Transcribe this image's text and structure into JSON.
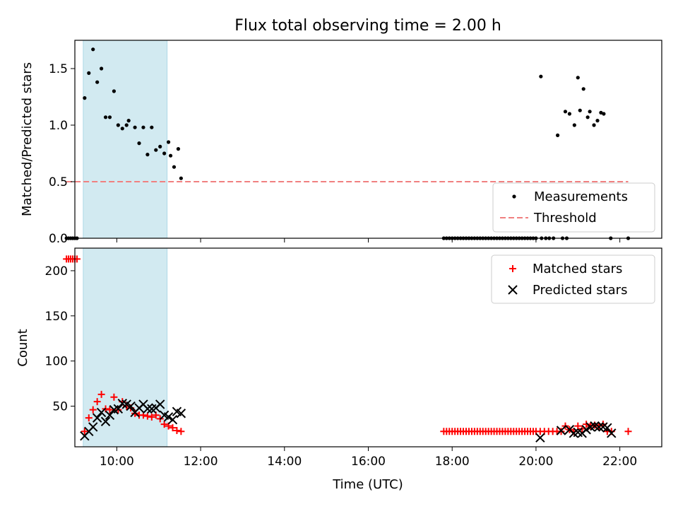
{
  "chart_data": [
    {
      "type": "scatter",
      "title": "Flux total observing time = 2.00 h",
      "xlabel": "",
      "ylabel": "Matched/Predicted stars",
      "ylim": [
        0,
        1.75
      ],
      "yticks": [
        0.0,
        0.5,
        1.0,
        1.5
      ],
      "ytick_labels": [
        "0.0",
        "0.5",
        "1.0",
        "1.5"
      ],
      "xlim": [
        "09:00",
        "23:00"
      ],
      "legend_position": "lower-right",
      "highlight_span": [
        "09:12",
        "11:12"
      ],
      "threshold": {
        "name": "Threshold",
        "y": 0.5,
        "x_start": "08:48",
        "x_end": "22:12",
        "color": "#f08080",
        "style": "dashed"
      },
      "series": [
        {
          "name": "Measurements",
          "color": "#000000",
          "marker": "dot",
          "points": [
            [
              "08:48",
              0.0
            ],
            [
              "08:51",
              0.0
            ],
            [
              "08:54",
              0.0
            ],
            [
              "08:57",
              0.0
            ],
            [
              "09:00",
              0.0
            ],
            [
              "09:03",
              0.0
            ],
            [
              "09:14",
              1.24
            ],
            [
              "09:20",
              1.46
            ],
            [
              "09:26",
              1.67
            ],
            [
              "09:32",
              1.38
            ],
            [
              "09:38",
              1.5
            ],
            [
              "09:44",
              1.07
            ],
            [
              "09:50",
              1.07
            ],
            [
              "09:56",
              1.3
            ],
            [
              "10:02",
              1.0
            ],
            [
              "10:08",
              0.97
            ],
            [
              "10:14",
              1.0
            ],
            [
              "10:17",
              1.04
            ],
            [
              "10:26",
              0.98
            ],
            [
              "10:32",
              0.84
            ],
            [
              "10:38",
              0.98
            ],
            [
              "10:44",
              0.74
            ],
            [
              "10:50",
              0.98
            ],
            [
              "10:56",
              0.78
            ],
            [
              "11:02",
              0.81
            ],
            [
              "11:08",
              0.75
            ],
            [
              "11:14",
              0.85
            ],
            [
              "11:17",
              0.73
            ],
            [
              "11:22",
              0.63
            ],
            [
              "11:28",
              0.79
            ],
            [
              "11:32",
              0.53
            ],
            [
              "17:48",
              0.0
            ],
            [
              "17:52",
              0.0
            ],
            [
              "17:56",
              0.0
            ],
            [
              "18:00",
              0.0
            ],
            [
              "18:04",
              0.0
            ],
            [
              "18:08",
              0.0
            ],
            [
              "18:12",
              0.0
            ],
            [
              "18:16",
              0.0
            ],
            [
              "18:20",
              0.0
            ],
            [
              "18:24",
              0.0
            ],
            [
              "18:28",
              0.0
            ],
            [
              "18:32",
              0.0
            ],
            [
              "18:36",
              0.0
            ],
            [
              "18:40",
              0.0
            ],
            [
              "18:44",
              0.0
            ],
            [
              "18:48",
              0.0
            ],
            [
              "18:52",
              0.0
            ],
            [
              "18:56",
              0.0
            ],
            [
              "19:00",
              0.0
            ],
            [
              "19:04",
              0.0
            ],
            [
              "19:08",
              0.0
            ],
            [
              "19:12",
              0.0
            ],
            [
              "19:16",
              0.0
            ],
            [
              "19:20",
              0.0
            ],
            [
              "19:24",
              0.0
            ],
            [
              "19:28",
              0.0
            ],
            [
              "19:32",
              0.0
            ],
            [
              "19:36",
              0.0
            ],
            [
              "19:40",
              0.0
            ],
            [
              "19:44",
              0.0
            ],
            [
              "19:48",
              0.0
            ],
            [
              "19:52",
              0.0
            ],
            [
              "19:56",
              0.0
            ],
            [
              "20:00",
              0.0
            ],
            [
              "20:08",
              0.0
            ],
            [
              "20:14",
              0.0
            ],
            [
              "20:19",
              0.0
            ],
            [
              "20:25",
              0.0
            ],
            [
              "20:38",
              0.0
            ],
            [
              "20:44",
              0.0
            ],
            [
              "20:07",
              1.43
            ],
            [
              "20:31",
              0.91
            ],
            [
              "20:42",
              1.12
            ],
            [
              "20:48",
              1.1
            ],
            [
              "20:55",
              1.0
            ],
            [
              "21:00",
              1.42
            ],
            [
              "21:03",
              1.13
            ],
            [
              "21:08",
              1.32
            ],
            [
              "21:14",
              1.07
            ],
            [
              "21:17",
              1.12
            ],
            [
              "21:23",
              1.0
            ],
            [
              "21:28",
              1.04
            ],
            [
              "21:33",
              1.11
            ],
            [
              "21:37",
              1.1
            ],
            [
              "21:47",
              0.0
            ],
            [
              "22:12",
              0.0
            ]
          ]
        }
      ]
    },
    {
      "type": "scatter",
      "title": "",
      "xlabel": "Time (UTC)",
      "ylabel": "Count",
      "ylim": [
        5,
        225
      ],
      "yticks": [
        50,
        100,
        150,
        200
      ],
      "ytick_labels": [
        "50",
        "100",
        "150",
        "200"
      ],
      "xlim": [
        "09:00",
        "23:00"
      ],
      "xticks": [
        "10:00",
        "12:00",
        "14:00",
        "16:00",
        "18:00",
        "20:00",
        "22:00"
      ],
      "xtick_labels": [
        "10:00",
        "12:00",
        "14:00",
        "16:00",
        "18:00",
        "20:00",
        "22:00"
      ],
      "legend_position": "upper-right",
      "highlight_span": [
        "09:12",
        "11:12"
      ],
      "series": [
        {
          "name": "Matched stars",
          "color": "#ff0000",
          "marker": "plus",
          "points": [
            [
              "08:48",
              213
            ],
            [
              "08:51",
              213
            ],
            [
              "08:54",
              213
            ],
            [
              "08:57",
              213
            ],
            [
              "09:00",
              213
            ],
            [
              "09:03",
              213
            ],
            [
              "09:14",
              22
            ],
            [
              "09:20",
              37
            ],
            [
              "09:26",
              46
            ],
            [
              "09:32",
              55
            ],
            [
              "09:38",
              63
            ],
            [
              "09:44",
              47
            ],
            [
              "09:50",
              46
            ],
            [
              "09:56",
              60
            ],
            [
              "10:02",
              46
            ],
            [
              "10:08",
              55
            ],
            [
              "10:14",
              50
            ],
            [
              "10:20",
              48
            ],
            [
              "10:26",
              42
            ],
            [
              "10:32",
              40
            ],
            [
              "10:38",
              40
            ],
            [
              "10:44",
              39
            ],
            [
              "10:50",
              38
            ],
            [
              "10:56",
              40
            ],
            [
              "11:02",
              36
            ],
            [
              "11:08",
              30
            ],
            [
              "11:14",
              28
            ],
            [
              "11:20",
              26
            ],
            [
              "11:26",
              23
            ],
            [
              "11:32",
              22
            ],
            [
              "17:48",
              22
            ],
            [
              "17:52",
              22
            ],
            [
              "17:56",
              22
            ],
            [
              "18:00",
              22
            ],
            [
              "18:04",
              22
            ],
            [
              "18:08",
              22
            ],
            [
              "18:12",
              22
            ],
            [
              "18:16",
              22
            ],
            [
              "18:20",
              22
            ],
            [
              "18:24",
              22
            ],
            [
              "18:28",
              22
            ],
            [
              "18:32",
              22
            ],
            [
              "18:36",
              22
            ],
            [
              "18:40",
              22
            ],
            [
              "18:44",
              22
            ],
            [
              "18:48",
              22
            ],
            [
              "18:52",
              22
            ],
            [
              "18:56",
              22
            ],
            [
              "19:00",
              22
            ],
            [
              "19:04",
              22
            ],
            [
              "19:08",
              22
            ],
            [
              "19:12",
              22
            ],
            [
              "19:16",
              22
            ],
            [
              "19:20",
              22
            ],
            [
              "19:24",
              22
            ],
            [
              "19:28",
              22
            ],
            [
              "19:32",
              22
            ],
            [
              "19:36",
              22
            ],
            [
              "19:40",
              22
            ],
            [
              "19:44",
              22
            ],
            [
              "19:48",
              22
            ],
            [
              "19:52",
              22
            ],
            [
              "19:56",
              22
            ],
            [
              "20:00",
              22
            ],
            [
              "20:06",
              22
            ],
            [
              "20:12",
              22
            ],
            [
              "20:18",
              22
            ],
            [
              "20:24",
              22
            ],
            [
              "20:30",
              22
            ],
            [
              "20:36",
              22
            ],
            [
              "20:42",
              28
            ],
            [
              "20:48",
              24
            ],
            [
              "20:54",
              22
            ],
            [
              "21:00",
              28
            ],
            [
              "21:06",
              25
            ],
            [
              "21:12",
              30
            ],
            [
              "21:18",
              28
            ],
            [
              "21:24",
              29
            ],
            [
              "21:30",
              28
            ],
            [
              "21:36",
              30
            ],
            [
              "21:42",
              22
            ],
            [
              "21:48",
              22
            ],
            [
              "22:12",
              22
            ]
          ]
        },
        {
          "name": "Predicted stars",
          "color": "#000000",
          "marker": "x",
          "points": [
            [
              "09:14",
              17
            ],
            [
              "09:20",
              22
            ],
            [
              "09:26",
              27
            ],
            [
              "09:32",
              37
            ],
            [
              "09:38",
              43
            ],
            [
              "09:44",
              33
            ],
            [
              "09:50",
              40
            ],
            [
              "09:56",
              46
            ],
            [
              "10:02",
              47
            ],
            [
              "10:08",
              53
            ],
            [
              "10:14",
              52
            ],
            [
              "10:20",
              50
            ],
            [
              "10:26",
              43
            ],
            [
              "10:32",
              48
            ],
            [
              "10:38",
              52
            ],
            [
              "10:44",
              47
            ],
            [
              "10:50",
              47
            ],
            [
              "10:56",
              48
            ],
            [
              "11:02",
              52
            ],
            [
              "11:08",
              40
            ],
            [
              "11:14",
              38
            ],
            [
              "11:20",
              35
            ],
            [
              "11:26",
              44
            ],
            [
              "11:32",
              42
            ],
            [
              "20:06",
              15
            ],
            [
              "20:36",
              23
            ],
            [
              "20:48",
              24
            ],
            [
              "20:54",
              20
            ],
            [
              "21:00",
              21
            ],
            [
              "21:06",
              20
            ],
            [
              "21:12",
              24
            ],
            [
              "21:18",
              27
            ],
            [
              "21:24",
              28
            ],
            [
              "21:30",
              27
            ],
            [
              "21:36",
              27
            ],
            [
              "21:42",
              26
            ],
            [
              "21:48",
              20
            ]
          ]
        }
      ]
    }
  ]
}
